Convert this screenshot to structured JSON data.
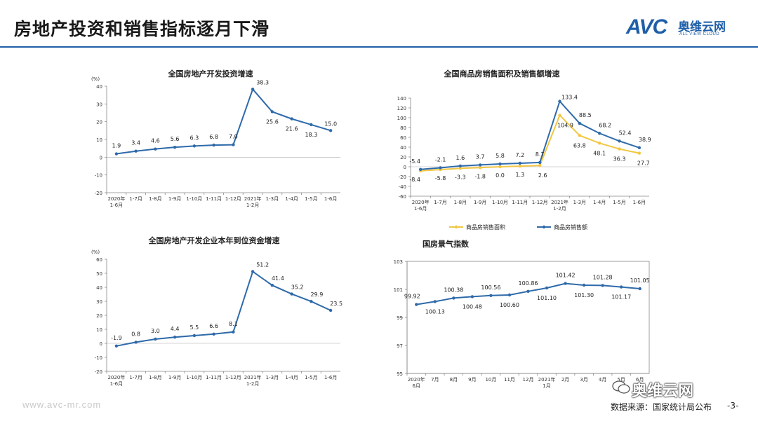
{
  "slide": {
    "title": "房地产投资和销售指标逐月下滑",
    "logo_mark": "AVC",
    "logo_cn": "奥维云网",
    "logo_en": "ALL VIEW CLOUD",
    "footer_url": "www.avc-mr.com",
    "footer_source": "数据来源：国家统计局公布",
    "page_number": "-3-",
    "watermark": "奥维云网",
    "accent_color": "#1f5fa8"
  },
  "chart_data": [
    {
      "id": "investment",
      "type": "line",
      "title": "全国房地产开发投资增速",
      "ylabel": "(%)",
      "ylim": [
        -20,
        40
      ],
      "yticks": [
        -20,
        -10,
        0,
        10,
        20,
        30,
        40
      ],
      "categories": [
        "2020年\n1-6月",
        "1-7月",
        "1-8月",
        "1-9月",
        "1-10月",
        "1-11月",
        "1-12月",
        "2021年\n1-2月",
        "1-3月",
        "1-4月",
        "1-5月",
        "1-6月"
      ],
      "series": [
        {
          "values": [
            1.9,
            3.4,
            4.6,
            5.6,
            6.3,
            6.8,
            7.0,
            38.3,
            25.6,
            21.6,
            18.3,
            15.0
          ],
          "labels": [
            "1.9",
            "3.4",
            "4.6",
            "5.6",
            "6.3",
            "6.8",
            "7.0",
            "38.3",
            "25.6",
            "21.6",
            "18.3",
            "15.0"
          ],
          "color": "#2e6aaa"
        }
      ]
    },
    {
      "id": "sales",
      "type": "line",
      "title": "全国商品房销售面积及销售额增速",
      "ylabel": "",
      "ylim": [
        -60,
        140
      ],
      "yticks": [
        -60,
        -40,
        -20,
        0,
        20,
        40,
        60,
        80,
        100,
        120,
        140
      ],
      "categories": [
        "2020年\n1-6月",
        "1-7月",
        "1-8月",
        "1-9月",
        "1-10月",
        "1-11月",
        "1-12月",
        "2021年\n1-2月",
        "1-3月",
        "1-4月",
        "1-5月",
        "1-6月"
      ],
      "legend_position": "bottom",
      "series": [
        {
          "name": "商品房销售面积",
          "values": [
            -8.4,
            -5.8,
            -3.3,
            -1.8,
            0.0,
            1.3,
            2.6,
            104.9,
            63.8,
            48.1,
            36.3,
            27.7
          ],
          "labels": [
            "-8.4",
            "-5.8",
            "-3.3",
            "-1.8",
            "0.0",
            "1.3",
            "2.6",
            "104.9",
            "63.8",
            "48.1",
            "36.3",
            "27.7"
          ],
          "color": "#f2c744"
        },
        {
          "name": "商品房销售额",
          "values": [
            -5.4,
            -2.1,
            1.6,
            3.7,
            5.8,
            7.2,
            8.7,
            133.4,
            88.5,
            68.2,
            52.4,
            38.9
          ],
          "labels": [
            "-5.4",
            "-2.1",
            "1.6",
            "3.7",
            "5.8",
            "7.2",
            "8.7",
            "133.4",
            "88.5",
            "68.2",
            "52.4",
            "38.9"
          ],
          "color": "#2e6aaa"
        }
      ]
    },
    {
      "id": "funds",
      "type": "line",
      "title": "全国房地产开发企业本年到位资金增速",
      "ylabel": "(%)",
      "ylim": [
        -20,
        60
      ],
      "yticks": [
        -20,
        -10,
        0,
        10,
        20,
        30,
        40,
        50,
        60
      ],
      "categories": [
        "2020年\n1-6月",
        "1-7月",
        "1-8月",
        "1-9月",
        "1-10月",
        "1-11月",
        "1-12月",
        "2021年\n1-2月",
        "1-3月",
        "1-4月",
        "1-5月",
        "1-6月"
      ],
      "series": [
        {
          "values": [
            -1.9,
            0.8,
            3.0,
            4.4,
            5.5,
            6.6,
            8.1,
            51.2,
            41.4,
            35.2,
            29.9,
            23.5
          ],
          "labels": [
            "-1.9",
            "0.8",
            "3.0",
            "4.4",
            "5.5",
            "6.6",
            "8.1",
            "51.2",
            "41.4",
            "35.2",
            "29.9",
            "23.5"
          ],
          "color": "#2e6aaa"
        }
      ]
    },
    {
      "id": "climate",
      "type": "line",
      "title": "国房景气指数",
      "ylabel": "",
      "ylim": [
        95,
        103
      ],
      "yticks": [
        95,
        97,
        99,
        101,
        103
      ],
      "categories": [
        "2020年\n6月",
        "7月",
        "8月",
        "9月",
        "10月",
        "11月",
        "12月",
        "2021年\n1月",
        "2月",
        "3月",
        "4月",
        "5月",
        "6月"
      ],
      "series": [
        {
          "values": [
            99.92,
            100.13,
            100.38,
            100.48,
            100.56,
            100.6,
            100.86,
            101.1,
            101.42,
            101.3,
            101.28,
            101.17,
            101.05
          ],
          "labels": [
            "99.92",
            "100.13",
            "100.38",
            "100.48",
            "100.56",
            "100.60",
            "100.86",
            "101.10",
            "101.42",
            "101.30",
            "101.28",
            "101.17",
            "101.05"
          ],
          "color": "#2e6aaa"
        }
      ]
    }
  ]
}
